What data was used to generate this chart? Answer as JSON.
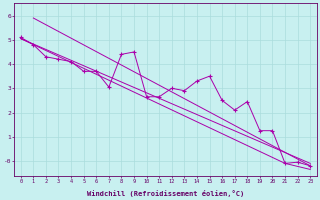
{
  "xlabel": "Windchill (Refroidissement éolien,°C)",
  "bg_color": "#c8f0f0",
  "line_color": "#aa00aa",
  "grid_color": "#aadddd",
  "axis_color": "#660066",
  "xlim": [
    -0.5,
    23.5
  ],
  "ylim": [
    -0.6,
    6.5
  ],
  "ytick_labels": [
    "-0",
    "1",
    "2",
    "3",
    "4",
    "5",
    "6"
  ],
  "ytick_vals": [
    0,
    1,
    2,
    3,
    4,
    5,
    6
  ],
  "xticks": [
    0,
    1,
    2,
    3,
    4,
    5,
    6,
    7,
    8,
    9,
    10,
    11,
    12,
    13,
    14,
    15,
    16,
    17,
    18,
    19,
    20,
    21,
    22,
    23
  ],
  "data_line": [
    [
      0,
      5.1
    ],
    [
      1,
      4.8
    ],
    [
      2,
      4.3
    ],
    [
      3,
      4.2
    ],
    [
      4,
      4.1
    ],
    [
      5,
      3.7
    ],
    [
      6,
      3.7
    ],
    [
      7,
      3.05
    ],
    [
      8,
      4.4
    ],
    [
      9,
      4.5
    ],
    [
      10,
      2.65
    ],
    [
      11,
      2.65
    ],
    [
      12,
      3.0
    ],
    [
      13,
      2.9
    ],
    [
      14,
      3.3
    ],
    [
      15,
      3.5
    ],
    [
      16,
      2.5
    ],
    [
      17,
      2.1
    ],
    [
      18,
      2.45
    ],
    [
      19,
      1.25
    ],
    [
      20,
      1.25
    ],
    [
      21,
      -0.1
    ],
    [
      22,
      -0.05
    ],
    [
      23,
      -0.2
    ]
  ],
  "regression_line": [
    [
      0,
      5.05
    ],
    [
      23,
      -0.1
    ]
  ],
  "upper_line": [
    [
      1,
      5.9
    ],
    [
      23,
      -0.2
    ]
  ],
  "lower_line": [
    [
      0,
      5.05
    ],
    [
      21,
      -0.1
    ],
    [
      23,
      -0.35
    ]
  ]
}
